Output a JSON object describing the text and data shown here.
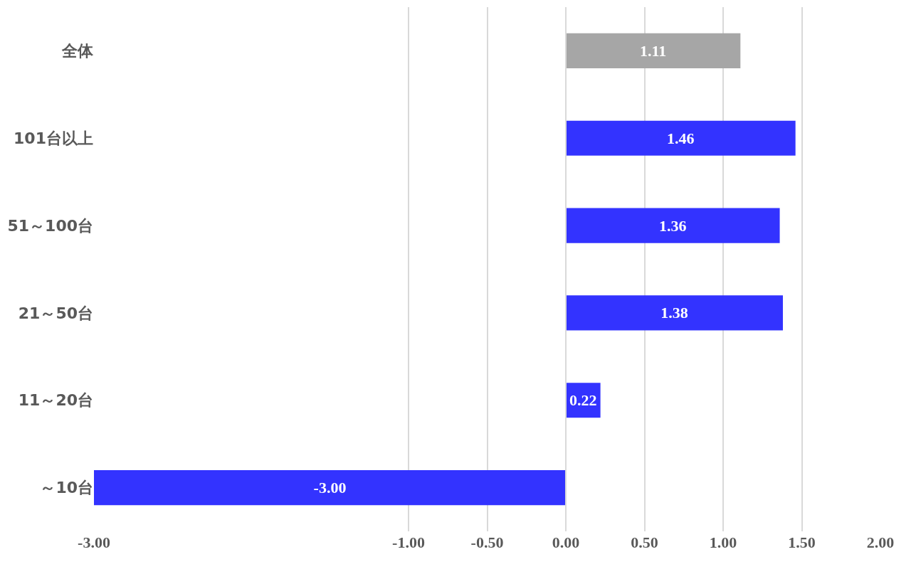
{
  "chart_data": {
    "type": "bar",
    "orientation": "horizontal",
    "categories": [
      "全体",
      "101台以上",
      "51～100台",
      "21～50台",
      "11～20台",
      "～10台"
    ],
    "values": [
      1.11,
      1.46,
      1.36,
      1.38,
      0.22,
      -3.0
    ],
    "value_labels": [
      "1.11",
      "1.46",
      "1.36",
      "1.38",
      "0.22",
      "-3.00"
    ],
    "colors": [
      "#a6a6a6",
      "#3333ff",
      "#3333ff",
      "#3333ff",
      "#3333ff",
      "#3333ff"
    ],
    "xlim": [
      -3,
      2
    ],
    "xticks": [
      {
        "value": -3,
        "label": "-3.00"
      },
      {
        "value": -1,
        "label": "-1.00"
      },
      {
        "value": -0.5,
        "label": "-0.50"
      },
      {
        "value": 0,
        "label": "0.00"
      },
      {
        "value": 0.5,
        "label": "0.50"
      },
      {
        "value": 1,
        "label": "1.00"
      },
      {
        "value": 1.5,
        "label": "1.50"
      },
      {
        "value": 2,
        "label": "2.00"
      }
    ],
    "grid": "x"
  }
}
